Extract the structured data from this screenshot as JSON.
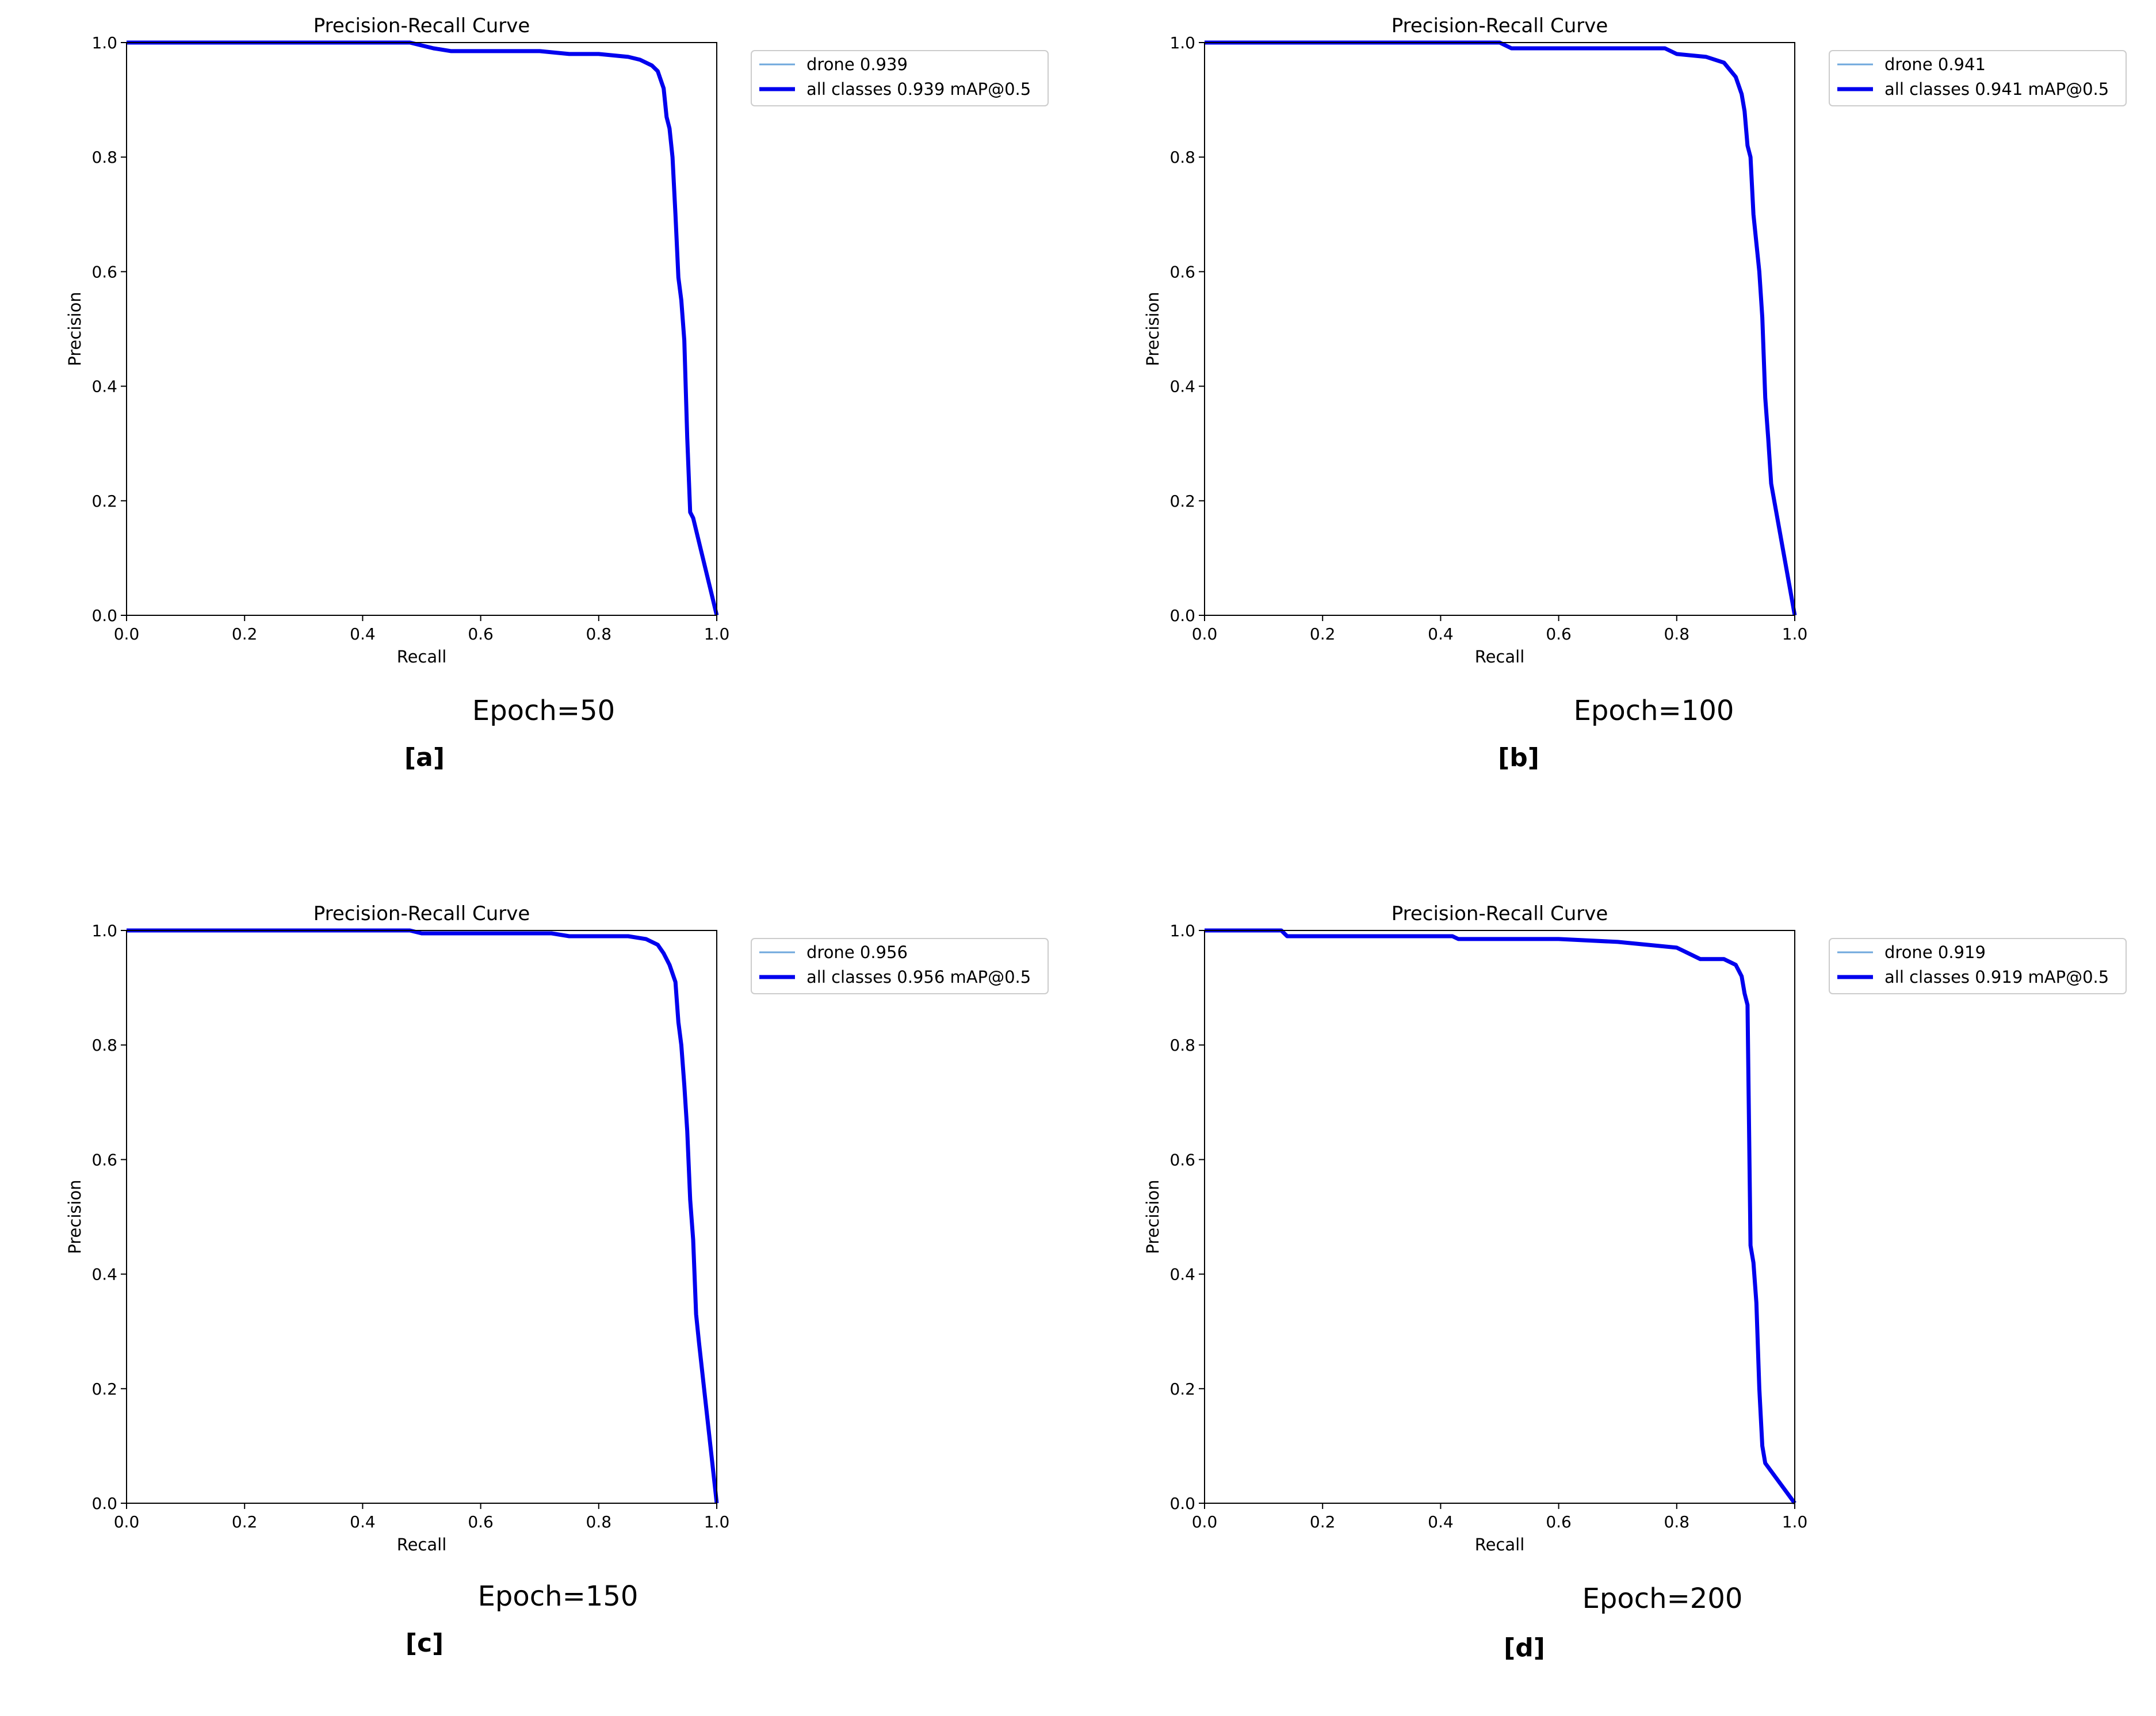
{
  "chart_data": [
    {
      "type": "line",
      "title": "Precision-Recall Curve",
      "xlabel": "Recall",
      "ylabel": "Precision",
      "xlim": [
        0,
        1
      ],
      "ylim": [
        0,
        1
      ],
      "ticks": [
        "0.0",
        "0.2",
        "0.4",
        "0.6",
        "0.8",
        "1.0"
      ],
      "legend_placement": "outside-right",
      "caption": "Epoch=50",
      "panel_label": "[a]",
      "series": [
        {
          "name": "drone 0.939",
          "color": "#6fa8dc",
          "x": [
            0,
            0.48,
            0.5,
            0.52,
            0.55,
            0.6,
            0.7,
            0.75,
            0.8,
            0.85,
            0.87,
            0.88,
            0.89,
            0.9,
            0.91,
            0.915,
            0.92,
            0.925,
            0.93,
            0.935,
            0.94,
            0.945,
            0.95,
            0.955,
            0.96,
            1.0
          ],
          "y": [
            1.0,
            1.0,
            0.995,
            0.99,
            0.985,
            0.985,
            0.985,
            0.98,
            0.98,
            0.975,
            0.97,
            0.965,
            0.96,
            0.95,
            0.92,
            0.87,
            0.85,
            0.8,
            0.7,
            0.59,
            0.55,
            0.48,
            0.31,
            0.18,
            0.17,
            0.0
          ]
        },
        {
          "name": "all classes 0.939 mAP@0.5",
          "color": "#0000ee",
          "x": [
            0,
            0.48,
            0.5,
            0.52,
            0.55,
            0.6,
            0.7,
            0.75,
            0.8,
            0.85,
            0.87,
            0.88,
            0.89,
            0.9,
            0.91,
            0.915,
            0.92,
            0.925,
            0.93,
            0.935,
            0.94,
            0.945,
            0.95,
            0.955,
            0.96,
            1.0
          ],
          "y": [
            1.0,
            1.0,
            0.995,
            0.99,
            0.985,
            0.985,
            0.985,
            0.98,
            0.98,
            0.975,
            0.97,
            0.965,
            0.96,
            0.95,
            0.92,
            0.87,
            0.85,
            0.8,
            0.7,
            0.59,
            0.55,
            0.48,
            0.31,
            0.18,
            0.17,
            0.0
          ]
        }
      ]
    },
    {
      "type": "line",
      "title": "Precision-Recall Curve",
      "xlabel": "Recall",
      "ylabel": "Precision",
      "xlim": [
        0,
        1
      ],
      "ylim": [
        0,
        1
      ],
      "ticks": [
        "0.0",
        "0.2",
        "0.4",
        "0.6",
        "0.8",
        "1.0"
      ],
      "legend_placement": "outside-right",
      "caption": "Epoch=100",
      "panel_label": "[b]",
      "series": [
        {
          "name": "drone 0.941",
          "color": "#6fa8dc",
          "x": [
            0,
            0.5,
            0.52,
            0.6,
            0.7,
            0.78,
            0.8,
            0.85,
            0.88,
            0.9,
            0.91,
            0.915,
            0.92,
            0.925,
            0.93,
            0.935,
            0.94,
            0.945,
            0.95,
            0.955,
            0.96,
            1.0
          ],
          "y": [
            1.0,
            1.0,
            0.99,
            0.99,
            0.99,
            0.99,
            0.98,
            0.975,
            0.965,
            0.94,
            0.91,
            0.88,
            0.82,
            0.8,
            0.7,
            0.65,
            0.6,
            0.52,
            0.38,
            0.31,
            0.23,
            0.0
          ]
        },
        {
          "name": "all classes 0.941 mAP@0.5",
          "color": "#0000ee",
          "x": [
            0,
            0.5,
            0.52,
            0.6,
            0.7,
            0.78,
            0.8,
            0.85,
            0.88,
            0.9,
            0.91,
            0.915,
            0.92,
            0.925,
            0.93,
            0.935,
            0.94,
            0.945,
            0.95,
            0.955,
            0.96,
            1.0
          ],
          "y": [
            1.0,
            1.0,
            0.99,
            0.99,
            0.99,
            0.99,
            0.98,
            0.975,
            0.965,
            0.94,
            0.91,
            0.88,
            0.82,
            0.8,
            0.7,
            0.65,
            0.6,
            0.52,
            0.38,
            0.31,
            0.23,
            0.0
          ]
        }
      ]
    },
    {
      "type": "line",
      "title": "Precision-Recall Curve",
      "xlabel": "Recall",
      "ylabel": "Precision",
      "xlim": [
        0,
        1
      ],
      "ylim": [
        0,
        1
      ],
      "ticks": [
        "0.0",
        "0.2",
        "0.4",
        "0.6",
        "0.8",
        "1.0"
      ],
      "legend_placement": "outside-right",
      "caption": "Epoch=150",
      "panel_label": "[c]",
      "series": [
        {
          "name": "drone 0.956",
          "color": "#6fa8dc",
          "x": [
            0,
            0.48,
            0.5,
            0.6,
            0.72,
            0.75,
            0.85,
            0.88,
            0.9,
            0.91,
            0.92,
            0.93,
            0.935,
            0.94,
            0.945,
            0.95,
            0.955,
            0.96,
            0.965,
            0.97,
            1.0
          ],
          "y": [
            1.0,
            1.0,
            0.995,
            0.995,
            0.995,
            0.99,
            0.99,
            0.985,
            0.975,
            0.96,
            0.94,
            0.91,
            0.84,
            0.8,
            0.73,
            0.65,
            0.53,
            0.46,
            0.33,
            0.28,
            0.0
          ]
        },
        {
          "name": "all classes 0.956 mAP@0.5",
          "color": "#0000ee",
          "x": [
            0,
            0.48,
            0.5,
            0.6,
            0.72,
            0.75,
            0.85,
            0.88,
            0.9,
            0.91,
            0.92,
            0.93,
            0.935,
            0.94,
            0.945,
            0.95,
            0.955,
            0.96,
            0.965,
            0.97,
            1.0
          ],
          "y": [
            1.0,
            1.0,
            0.995,
            0.995,
            0.995,
            0.99,
            0.99,
            0.985,
            0.975,
            0.96,
            0.94,
            0.91,
            0.84,
            0.8,
            0.73,
            0.65,
            0.53,
            0.46,
            0.33,
            0.28,
            0.0
          ]
        }
      ]
    },
    {
      "type": "line",
      "title": "Precision-Recall Curve",
      "xlabel": "Recall",
      "ylabel": "Precision",
      "xlim": [
        0,
        1
      ],
      "ylim": [
        0,
        1
      ],
      "ticks": [
        "0.0",
        "0.2",
        "0.4",
        "0.6",
        "0.8",
        "1.0"
      ],
      "legend_placement": "outside-right",
      "caption": "Epoch=200",
      "panel_label": "[d]",
      "series": [
        {
          "name": "drone 0.919",
          "color": "#6fa8dc",
          "x": [
            0,
            0.13,
            0.14,
            0.3,
            0.42,
            0.43,
            0.6,
            0.7,
            0.75,
            0.8,
            0.82,
            0.84,
            0.88,
            0.9,
            0.91,
            0.915,
            0.92,
            0.925,
            0.93,
            0.935,
            0.94,
            0.945,
            0.95,
            1.0
          ],
          "y": [
            1.0,
            1.0,
            0.99,
            0.99,
            0.99,
            0.985,
            0.985,
            0.98,
            0.975,
            0.97,
            0.96,
            0.95,
            0.95,
            0.94,
            0.92,
            0.89,
            0.87,
            0.45,
            0.42,
            0.35,
            0.2,
            0.1,
            0.07,
            0.0
          ]
        },
        {
          "name": "all classes 0.919 mAP@0.5",
          "color": "#0000ee",
          "x": [
            0,
            0.13,
            0.14,
            0.3,
            0.42,
            0.43,
            0.6,
            0.7,
            0.75,
            0.8,
            0.82,
            0.84,
            0.88,
            0.9,
            0.91,
            0.915,
            0.92,
            0.925,
            0.93,
            0.935,
            0.94,
            0.945,
            0.95,
            1.0
          ],
          "y": [
            1.0,
            1.0,
            0.99,
            0.99,
            0.99,
            0.985,
            0.985,
            0.98,
            0.975,
            0.97,
            0.96,
            0.95,
            0.95,
            0.94,
            0.92,
            0.89,
            0.87,
            0.45,
            0.42,
            0.35,
            0.2,
            0.1,
            0.07,
            0.0
          ]
        }
      ]
    }
  ]
}
